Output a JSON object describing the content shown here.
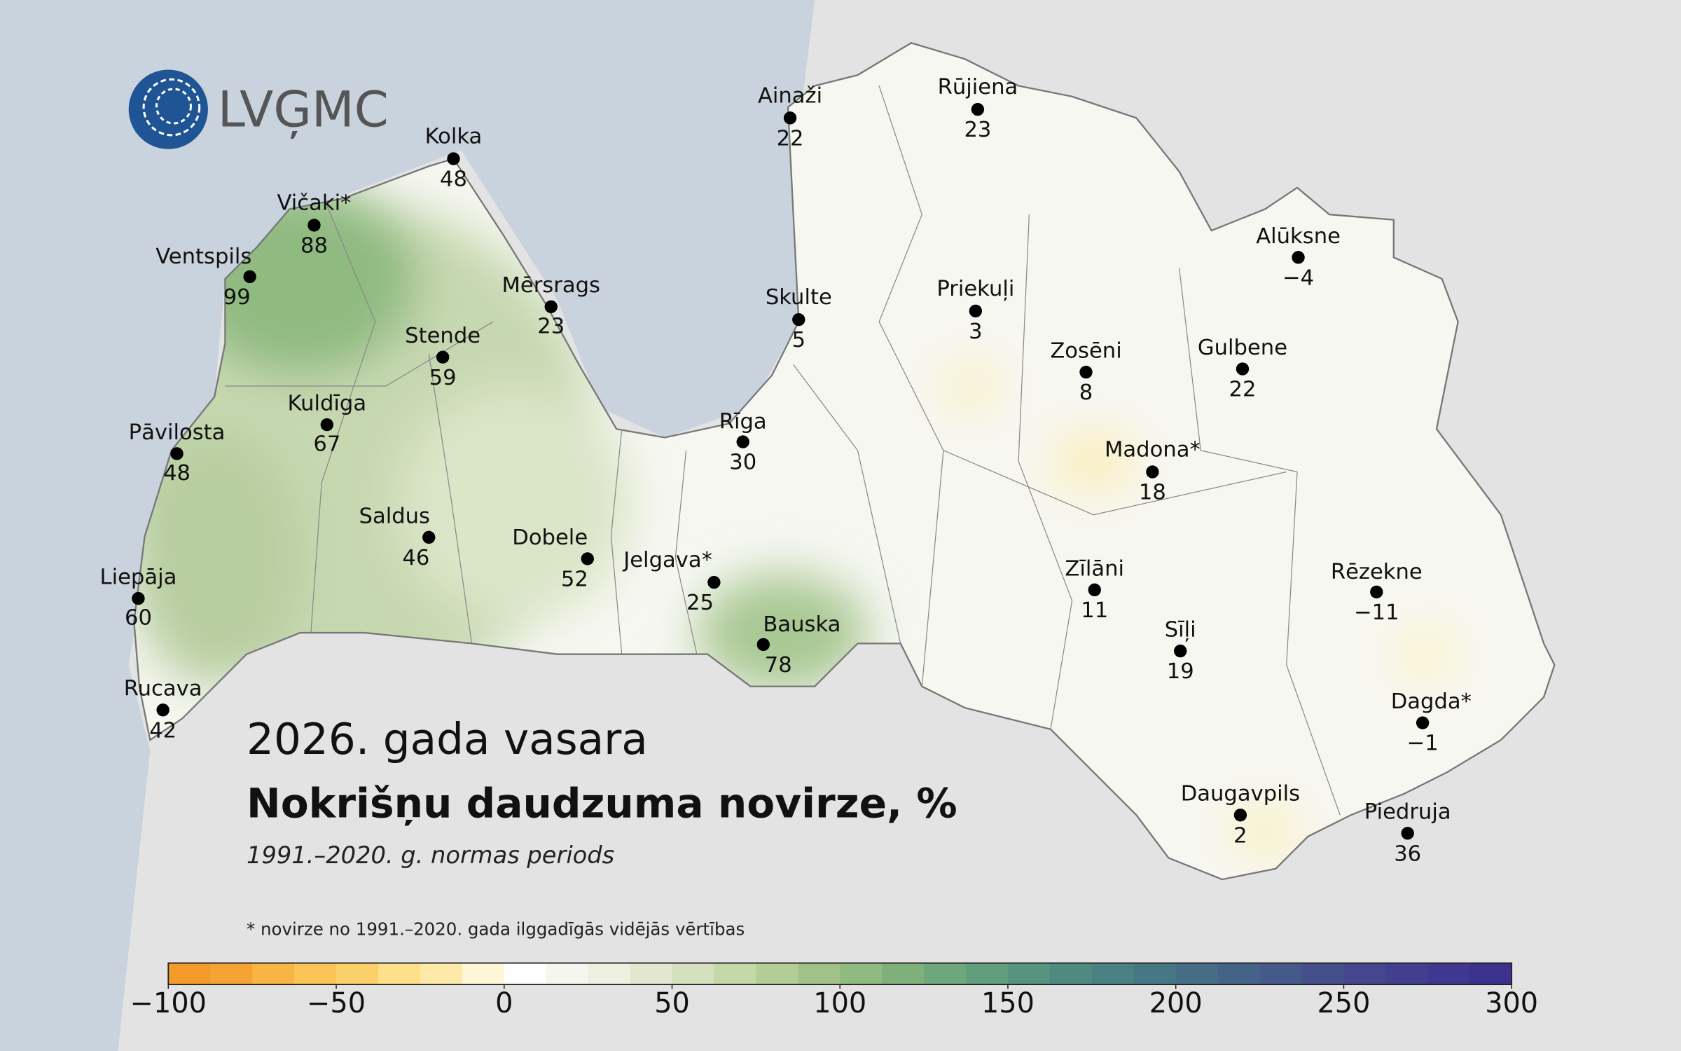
{
  "logo": "LVĢMC",
  "title": "2026. gada vasara",
  "subtitle": "Nokrišņu daudzuma novirze, %",
  "period": "1991.–2020. g. normas periods",
  "footnote": "* novirze no 1991.–2020. gada ilggadīgās vidējās vērtības",
  "stations": [
    {
      "name": "Ainaži",
      "value": 22
    },
    {
      "name": "Rūjiena",
      "value": 23
    },
    {
      "name": "Kolka",
      "value": 48
    },
    {
      "name": "Vičaki*",
      "value": 88
    },
    {
      "name": "Ventspils",
      "value": 99
    },
    {
      "name": "Mērsrags",
      "value": 23
    },
    {
      "name": "Skulte",
      "value": 5
    },
    {
      "name": "Alūksne",
      "value": -4,
      "value_label": "−4"
    },
    {
      "name": "Priekuļi",
      "value": 3
    },
    {
      "name": "Stende",
      "value": 59
    },
    {
      "name": "Zosēni",
      "value": 8
    },
    {
      "name": "Gulbene",
      "value": 22
    },
    {
      "name": "Kuldīga",
      "value": 67
    },
    {
      "name": "Pāvilosta",
      "value": 48
    },
    {
      "name": "Rīga",
      "value": 30
    },
    {
      "name": "Madona*",
      "value": 18
    },
    {
      "name": "Saldus",
      "value": 46
    },
    {
      "name": "Dobele",
      "value": 52
    },
    {
      "name": "Jelgava*",
      "value": 25
    },
    {
      "name": "Zīlāni",
      "value": 11
    },
    {
      "name": "Rēzekne",
      "value": -11,
      "value_label": "−11"
    },
    {
      "name": "Liepāja",
      "value": 60
    },
    {
      "name": "Sīļi",
      "value": 19
    },
    {
      "name": "Bauska",
      "value": 78
    },
    {
      "name": "Rucava",
      "value": 42
    },
    {
      "name": "Dagda*",
      "value": -1,
      "value_label": "−1"
    },
    {
      "name": "Daugavpils",
      "value": 2
    },
    {
      "name": "Piedruja",
      "value": 36
    }
  ],
  "colorbar": {
    "lim": [
      -100,
      300
    ],
    "ticks": [
      {
        "value": -100,
        "label": "−100"
      },
      {
        "value": -50,
        "label": "−50"
      },
      0,
      50,
      100,
      150,
      200,
      250,
      300
    ],
    "colors": [
      "#f39a2a",
      "#f5a433",
      "#f8b444",
      "#fac457",
      "#fbd06a",
      "#fde089",
      "#feeaa8",
      "#fff6d8",
      "#ffffff",
      "#f6f6ee",
      "#eef0e0",
      "#e2e8cf",
      "#d4e0bd",
      "#c5d8aa",
      "#b3cd97",
      "#a0c288",
      "#8fba80",
      "#7fb07c",
      "#6fa77c",
      "#619e7e",
      "#57947f",
      "#4f8a80",
      "#4a8182",
      "#467784",
      "#456d86",
      "#456388",
      "#45598a",
      "#454f8c",
      "#44478e",
      "#423f8f",
      "#403890",
      "#3d3190"
    ]
  }
}
